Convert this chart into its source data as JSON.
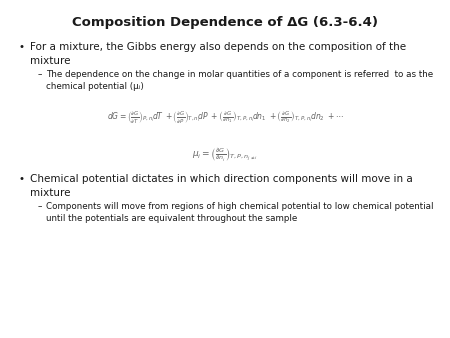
{
  "title": "Composition Dependence of ΔG (6.3-6.4)",
  "background_color": "#ffffff",
  "text_color": "#1a1a1a",
  "eq_color": "#666666",
  "bullet1_main": "For a mixture, the Gibbs energy also depends on the composition of the\nmixture",
  "bullet1_sub": "The dependence on the change in molar quantities of a component is referred  to as the\nchemical potential (μᵢ)",
  "bullet2_main": "Chemical potential dictates in which direction components will move in a\nmixture",
  "bullet2_sub": "Components will move from regions of high chemical potential to low chemical potential\nuntil the potentials are equivalent throughout the sample",
  "title_fontsize": 9.5,
  "body_fontsize": 7.5,
  "sub_fontsize": 6.3,
  "eq1_fontsize": 5.5,
  "eq2_fontsize": 6.5
}
